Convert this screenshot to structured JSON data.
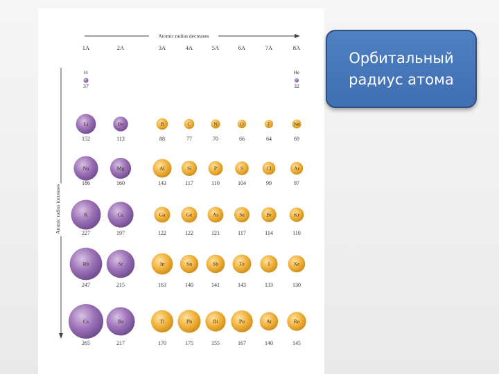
{
  "slide": {
    "title": "Орбитальный радиус атома"
  },
  "diagram": {
    "top_arrow_label": "Atomic radius decreases",
    "side_arrow_label": "Atomic radius increases",
    "groups": [
      "1A",
      "2A",
      "3A",
      "4A",
      "5A",
      "6A",
      "7A",
      "8A"
    ],
    "colors": {
      "s_block": "#9b6fb6",
      "p_block": "#f2b13a"
    },
    "rows": [
      [
        {
          "symbol": "H",
          "radius": 37,
          "group": 0,
          "block": "s"
        },
        {
          "symbol": "He",
          "radius": 32,
          "group": 7,
          "block": "s"
        }
      ],
      [
        {
          "symbol": "Li",
          "radius": 152,
          "group": 0,
          "block": "s"
        },
        {
          "symbol": "Be",
          "radius": 113,
          "group": 1,
          "block": "s"
        },
        {
          "symbol": "B",
          "radius": 88,
          "group": 2,
          "block": "p"
        },
        {
          "symbol": "C",
          "radius": 77,
          "group": 3,
          "block": "p"
        },
        {
          "symbol": "N",
          "radius": 70,
          "group": 4,
          "block": "p"
        },
        {
          "symbol": "O",
          "radius": 66,
          "group": 5,
          "block": "p"
        },
        {
          "symbol": "F",
          "radius": 64,
          "group": 6,
          "block": "p"
        },
        {
          "symbol": "Ne",
          "radius": 69,
          "group": 7,
          "block": "p"
        }
      ],
      [
        {
          "symbol": "Na",
          "radius": 186,
          "group": 0,
          "block": "s"
        },
        {
          "symbol": "Mg",
          "radius": 160,
          "group": 1,
          "block": "s"
        },
        {
          "symbol": "Al",
          "radius": 143,
          "group": 2,
          "block": "p"
        },
        {
          "symbol": "Si",
          "radius": 117,
          "group": 3,
          "block": "p"
        },
        {
          "symbol": "P",
          "radius": 110,
          "group": 4,
          "block": "p"
        },
        {
          "symbol": "S",
          "radius": 104,
          "group": 5,
          "block": "p"
        },
        {
          "symbol": "Cl",
          "radius": 99,
          "group": 6,
          "block": "p"
        },
        {
          "symbol": "Ar",
          "radius": 97,
          "group": 7,
          "block": "p"
        }
      ],
      [
        {
          "symbol": "K",
          "radius": 227,
          "group": 0,
          "block": "s"
        },
        {
          "symbol": "Ca",
          "radius": 197,
          "group": 1,
          "block": "s"
        },
        {
          "symbol": "Ga",
          "radius": 122,
          "group": 2,
          "block": "p"
        },
        {
          "symbol": "Ge",
          "radius": 122,
          "group": 3,
          "block": "p"
        },
        {
          "symbol": "As",
          "radius": 121,
          "group": 4,
          "block": "p"
        },
        {
          "symbol": "Se",
          "radius": 117,
          "group": 5,
          "block": "p"
        },
        {
          "symbol": "Br",
          "radius": 114,
          "group": 6,
          "block": "p"
        },
        {
          "symbol": "Kr",
          "radius": 110,
          "group": 7,
          "block": "p"
        }
      ],
      [
        {
          "symbol": "Rb",
          "radius": 247,
          "group": 0,
          "block": "s"
        },
        {
          "symbol": "Sr",
          "radius": 215,
          "group": 1,
          "block": "s"
        },
        {
          "symbol": "In",
          "radius": 163,
          "group": 2,
          "block": "p"
        },
        {
          "symbol": "Sn",
          "radius": 140,
          "group": 3,
          "block": "p"
        },
        {
          "symbol": "Sb",
          "radius": 141,
          "group": 4,
          "block": "p"
        },
        {
          "symbol": "Te",
          "radius": 143,
          "group": 5,
          "block": "p"
        },
        {
          "symbol": "I",
          "radius": 133,
          "group": 6,
          "block": "p"
        },
        {
          "symbol": "Xe",
          "radius": 130,
          "group": 7,
          "block": "p"
        }
      ],
      [
        {
          "symbol": "Cs",
          "radius": 265,
          "group": 0,
          "block": "s"
        },
        {
          "symbol": "Ba",
          "radius": 217,
          "group": 1,
          "block": "s"
        },
        {
          "symbol": "Tl",
          "radius": 170,
          "group": 2,
          "block": "p"
        },
        {
          "symbol": "Pb",
          "radius": 175,
          "group": 3,
          "block": "p"
        },
        {
          "symbol": "Bi",
          "radius": 155,
          "group": 4,
          "block": "p"
        },
        {
          "symbol": "Po",
          "radius": 167,
          "group": 5,
          "block": "p"
        },
        {
          "symbol": "At",
          "radius": 140,
          "group": 6,
          "block": "p"
        },
        {
          "symbol": "Rn",
          "radius": 145,
          "group": 7,
          "block": "p"
        }
      ]
    ]
  }
}
